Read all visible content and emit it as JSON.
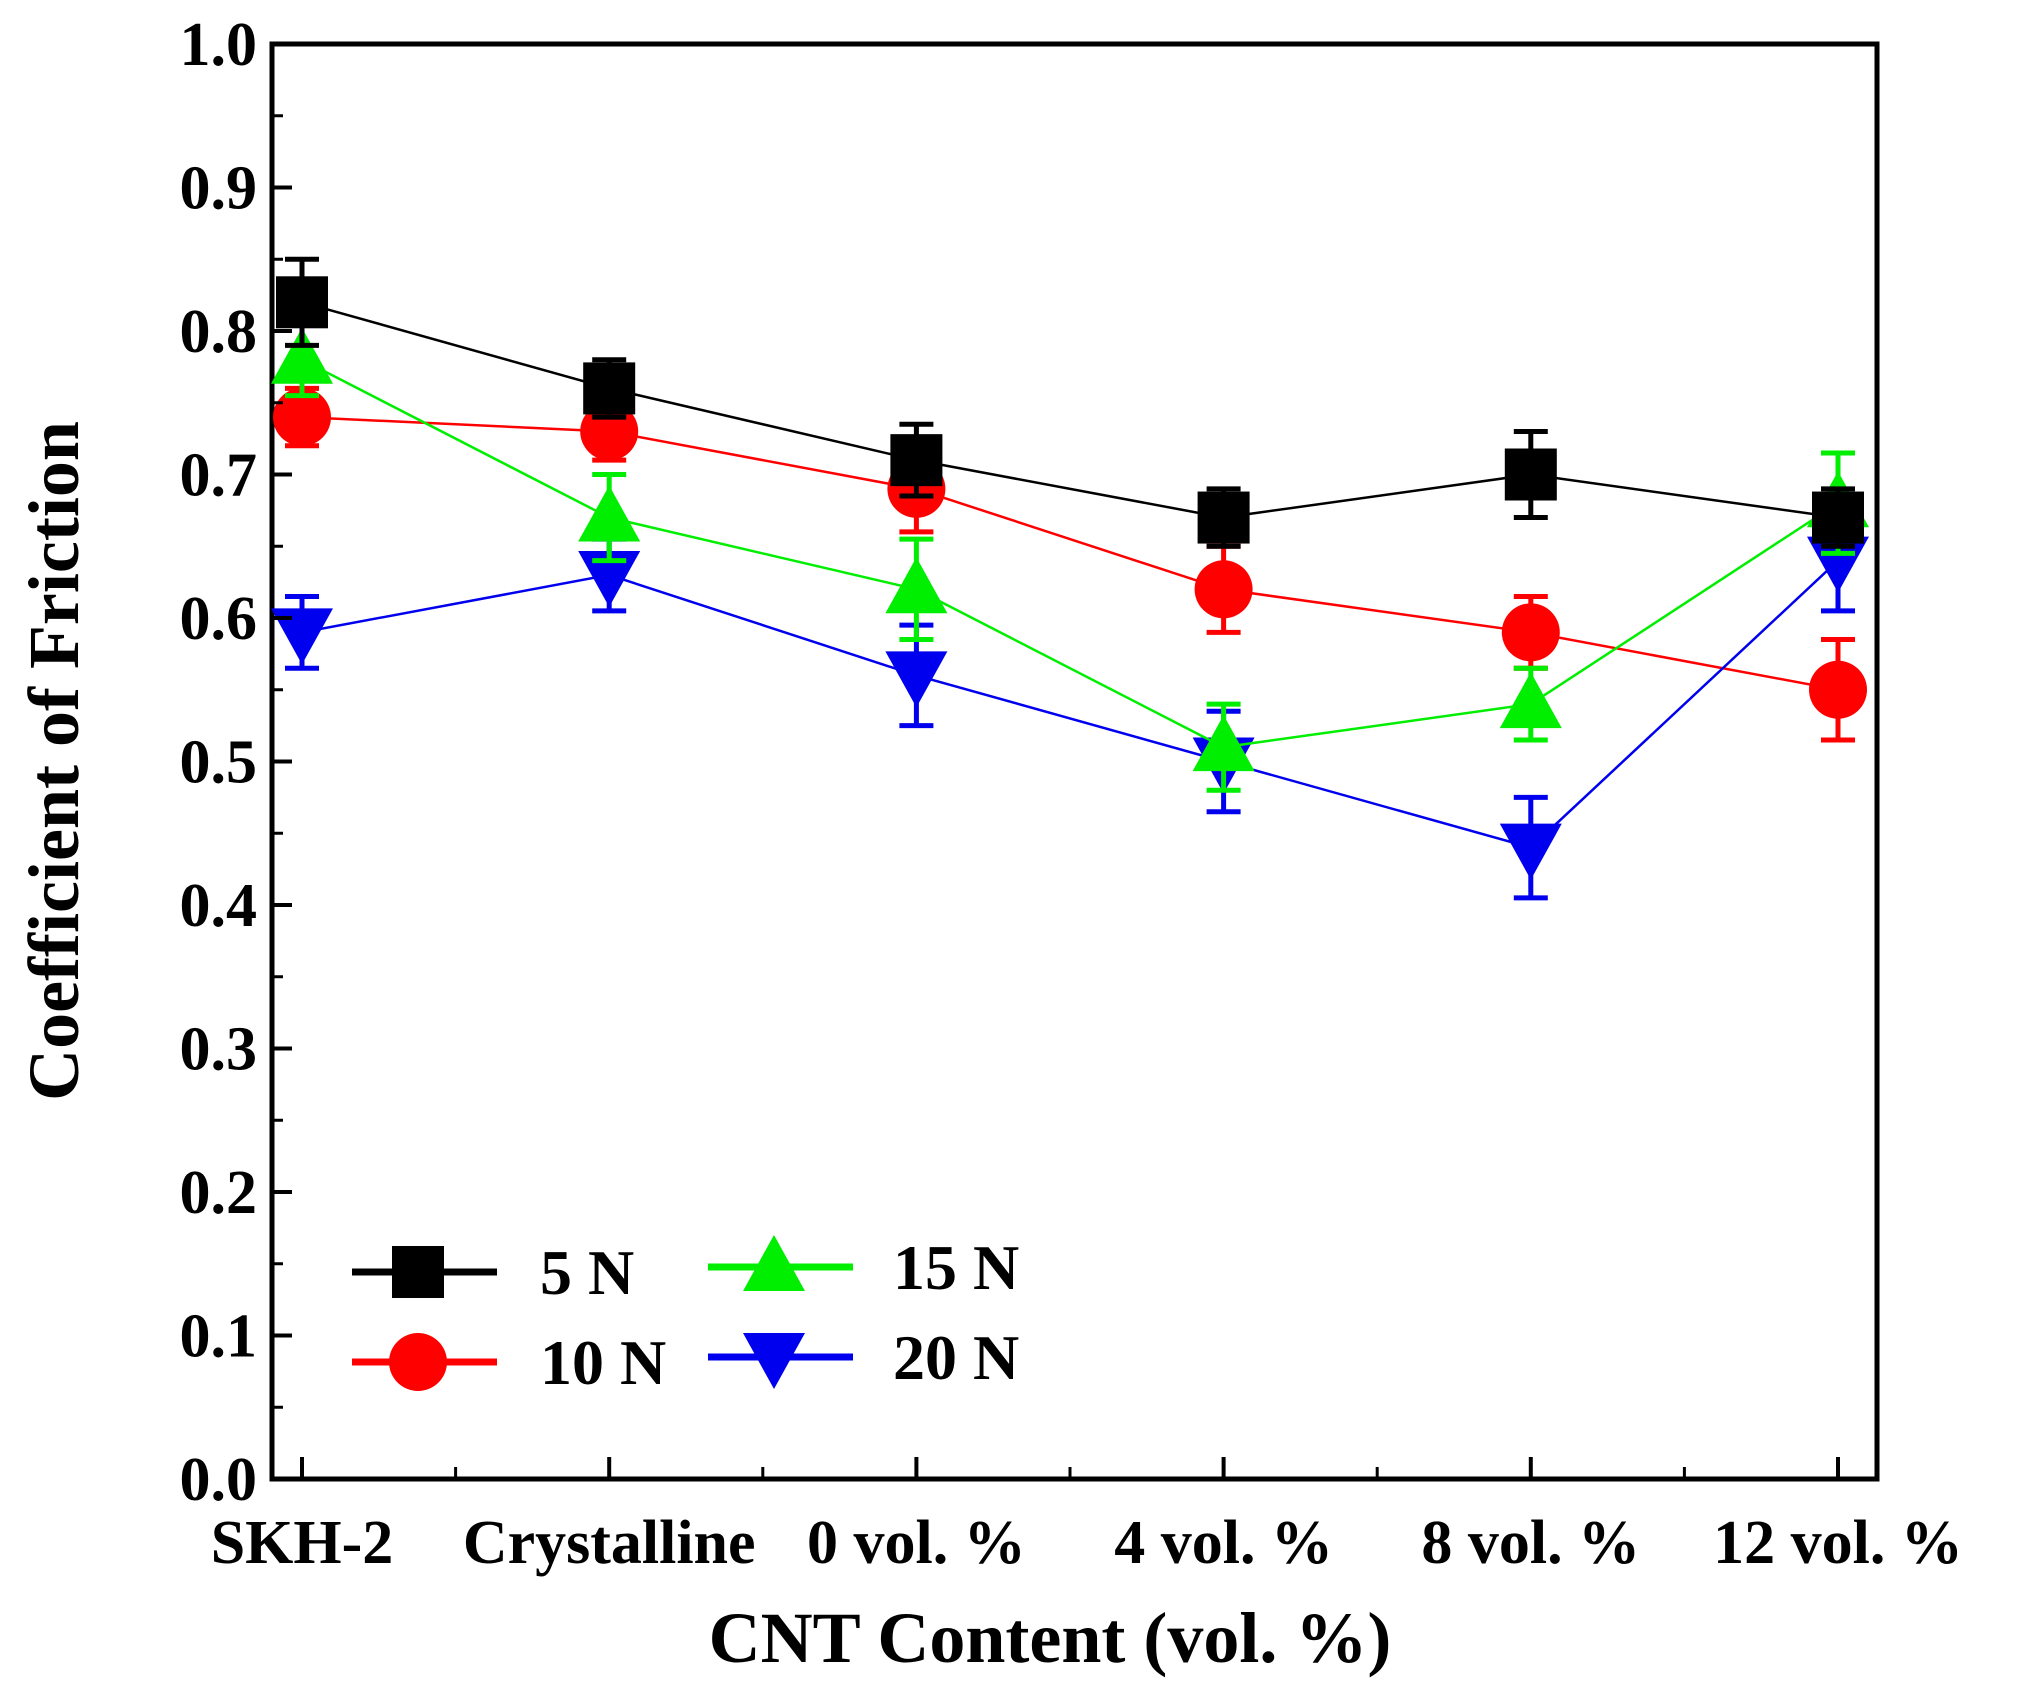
{
  "chart_data": {
    "type": "line",
    "title": "",
    "xlabel": "CNT Content (vol. %)",
    "ylabel": "Coefficient of Friction",
    "categories": [
      "SKH-2",
      "Crystalline",
      "0 vol. %",
      "4 vol. %",
      "8 vol. %",
      "12 vol. %"
    ],
    "ylim": [
      0.0,
      1.0
    ],
    "yticks": [
      "0.0",
      "0.1",
      "0.2",
      "0.3",
      "0.4",
      "0.5",
      "0.6",
      "0.7",
      "0.8",
      "0.9",
      "1.0"
    ],
    "grid": false,
    "legend_position": "bottom-left",
    "series": [
      {
        "name": "5 N",
        "label": "5 N",
        "marker": "square",
        "color": "#000000",
        "values": [
          0.82,
          0.76,
          0.71,
          0.67,
          0.7,
          0.67
        ],
        "errors": [
          0.03,
          0.02,
          0.025,
          0.02,
          0.03,
          0.02
        ]
      },
      {
        "name": "10 N",
        "label": "10 N",
        "marker": "circle",
        "color": "#ff0000",
        "values": [
          0.74,
          0.73,
          0.69,
          0.62,
          0.59,
          0.55
        ],
        "errors": [
          0.02,
          0.02,
          0.03,
          0.03,
          0.025,
          0.035
        ]
      },
      {
        "name": "15 N",
        "label": "15 N",
        "marker": "triangle-up",
        "color": "#00ee00",
        "values": [
          0.78,
          0.67,
          0.62,
          0.51,
          0.54,
          0.68
        ],
        "errors": [
          0.025,
          0.03,
          0.035,
          0.03,
          0.025,
          0.035
        ]
      },
      {
        "name": "20 N",
        "label": "20 N",
        "marker": "triangle-down",
        "color": "#0000ee",
        "values": [
          0.59,
          0.63,
          0.56,
          0.5,
          0.44,
          0.64
        ],
        "errors": [
          0.025,
          0.025,
          0.035,
          0.035,
          0.035,
          0.035
        ]
      }
    ]
  }
}
